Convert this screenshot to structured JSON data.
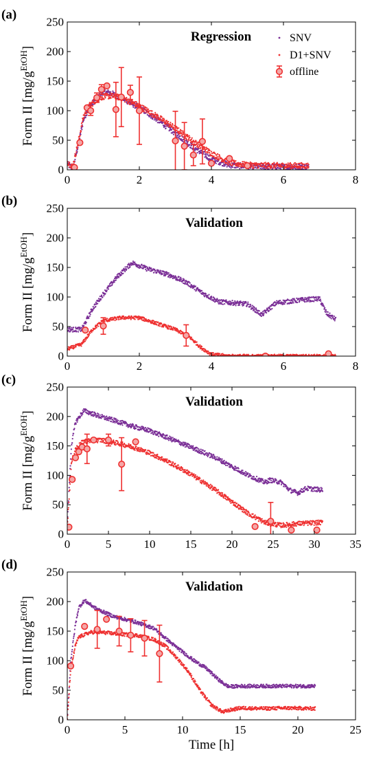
{
  "colors": {
    "snv": "#7a2e96",
    "d1snv": "#ee3030",
    "offline": "#ee3030",
    "offline_fill": "#f4a6a6"
  },
  "legend": {
    "snv": "SNV",
    "d1snv": "D1+SNV",
    "offline": "offline"
  },
  "chart_data": [
    {
      "type": "scatter",
      "panel": "(a)",
      "title": "Regression",
      "ylabel": "Form II [mg/g",
      "ylabel_sup": "EtOH",
      "ylabel_close": "]",
      "xlabel": "",
      "xlim": [
        0,
        8
      ],
      "ylim": [
        0,
        250
      ],
      "xticks": [
        0,
        2,
        4,
        6,
        8
      ],
      "yticks": [
        0,
        50,
        100,
        150,
        200,
        250
      ],
      "grid": false,
      "legend_position": "top-right",
      "series": [
        {
          "name": "SNV",
          "kind": "dots",
          "curve": [
            [
              0,
              10
            ],
            [
              0.15,
              2
            ],
            [
              0.3,
              40
            ],
            [
              0.45,
              85
            ],
            [
              0.6,
              105
            ],
            [
              0.8,
              120
            ],
            [
              1.0,
              132
            ],
            [
              1.2,
              130
            ],
            [
              1.5,
              122
            ],
            [
              2.0,
              105
            ],
            [
              2.5,
              85
            ],
            [
              3.0,
              62
            ],
            [
              3.5,
              38
            ],
            [
              4.0,
              18
            ],
            [
              4.5,
              8
            ],
            [
              5.0,
              6
            ],
            [
              6.0,
              5
            ],
            [
              6.7,
              5
            ]
          ],
          "noise": 5
        },
        {
          "name": "D1+SNV",
          "kind": "dots",
          "curve": [
            [
              0,
              14
            ],
            [
              0.15,
              5
            ],
            [
              0.3,
              45
            ],
            [
              0.45,
              90
            ],
            [
              0.6,
              108
            ],
            [
              0.8,
              118
            ],
            [
              1.0,
              124
            ],
            [
              1.2,
              125
            ],
            [
              1.5,
              122
            ],
            [
              2.0,
              108
            ],
            [
              2.5,
              90
            ],
            [
              3.0,
              70
            ],
            [
              3.5,
              48
            ],
            [
              4.0,
              28
            ],
            [
              4.5,
              12
            ],
            [
              5.0,
              8
            ],
            [
              6.0,
              7
            ],
            [
              6.7,
              7
            ]
          ],
          "noise": 5
        },
        {
          "name": "offline",
          "kind": "errorbar",
          "points": [
            {
              "x": 0.2,
              "y": 4,
              "err": 0
            },
            {
              "x": 0.35,
              "y": 46,
              "err": 0
            },
            {
              "x": 0.55,
              "y": 105,
              "err": 0
            },
            {
              "x": 0.65,
              "y": 100,
              "err": 8
            },
            {
              "x": 0.82,
              "y": 122,
              "err": 8
            },
            {
              "x": 0.95,
              "y": 136,
              "err": 8
            },
            {
              "x": 1.1,
              "y": 142,
              "err": 0
            },
            {
              "x": 1.35,
              "y": 102,
              "err": 46
            },
            {
              "x": 1.5,
              "y": 123,
              "err": 50
            },
            {
              "x": 1.75,
              "y": 131,
              "err": 12
            },
            {
              "x": 2.0,
              "y": 100,
              "err": 57
            },
            {
              "x": 3.0,
              "y": 49,
              "err": 50
            },
            {
              "x": 3.25,
              "y": 40,
              "err": 40
            },
            {
              "x": 3.5,
              "y": 25,
              "err": 18
            },
            {
              "x": 3.75,
              "y": 48,
              "err": 38
            },
            {
              "x": 4.0,
              "y": 11,
              "err": 0
            },
            {
              "x": 4.5,
              "y": 19,
              "err": 0
            },
            {
              "x": 5.0,
              "y": 7,
              "err": 0
            }
          ]
        }
      ]
    },
    {
      "type": "scatter",
      "panel": "(b)",
      "title": "Validation",
      "ylabel": "Form II [mg/g",
      "ylabel_sup": "EtOH",
      "ylabel_close": "]",
      "xlabel": "",
      "xlim": [
        0,
        8
      ],
      "ylim": [
        0,
        250
      ],
      "xticks": [
        0,
        2,
        4,
        6,
        8
      ],
      "yticks": [
        0,
        50,
        100,
        150,
        200,
        250
      ],
      "grid": false,
      "series": [
        {
          "name": "SNV",
          "kind": "dots",
          "curve": [
            [
              0,
              45
            ],
            [
              0.4,
              45
            ],
            [
              0.7,
              80
            ],
            [
              1.0,
              105
            ],
            [
              1.4,
              135
            ],
            [
              1.8,
              158
            ],
            [
              2.2,
              148
            ],
            [
              2.8,
              138
            ],
            [
              3.3,
              125
            ],
            [
              3.8,
              105
            ],
            [
              4.2,
              92
            ],
            [
              5.0,
              88
            ],
            [
              5.4,
              70
            ],
            [
              5.8,
              90
            ],
            [
              6.5,
              95
            ],
            [
              7.0,
              97
            ],
            [
              7.2,
              72
            ],
            [
              7.45,
              62
            ]
          ],
          "noise": 4
        },
        {
          "name": "D1+SNV",
          "kind": "dots",
          "curve": [
            [
              0,
              12
            ],
            [
              0.4,
              20
            ],
            [
              0.7,
              45
            ],
            [
              1.0,
              60
            ],
            [
              1.5,
              65
            ],
            [
              2.0,
              65
            ],
            [
              2.5,
              55
            ],
            [
              3.0,
              45
            ],
            [
              3.4,
              32
            ],
            [
              3.7,
              15
            ],
            [
              4.0,
              3
            ],
            [
              4.5,
              0
            ],
            [
              7.45,
              0
            ]
          ],
          "noise": 3
        },
        {
          "name": "offline",
          "kind": "errorbar",
          "points": [
            {
              "x": 0.5,
              "y": 44,
              "err": 0
            },
            {
              "x": 1.0,
              "y": 51,
              "err": 14
            },
            {
              "x": 3.3,
              "y": 35,
              "err": 18
            },
            {
              "x": 5.5,
              "y": 0,
              "err": 0
            },
            {
              "x": 7.25,
              "y": 4,
              "err": 0
            }
          ]
        }
      ]
    },
    {
      "type": "scatter",
      "panel": "(c)",
      "title": "Validation",
      "ylabel": "Form II [mg/g",
      "ylabel_sup": "EtOH",
      "ylabel_close": "]",
      "xlabel": "",
      "xlim": [
        0,
        35
      ],
      "ylim": [
        0,
        250
      ],
      "xticks": [
        0,
        5,
        10,
        15,
        20,
        25,
        30,
        35
      ],
      "yticks": [
        0,
        50,
        100,
        150,
        200,
        250
      ],
      "grid": false,
      "series": [
        {
          "name": "SNV",
          "kind": "dots",
          "curve": [
            [
              0,
              20
            ],
            [
              0.5,
              150
            ],
            [
              1.0,
              190
            ],
            [
              2.0,
              210
            ],
            [
              4.0,
              200
            ],
            [
              6.0,
              192
            ],
            [
              8.0,
              183
            ],
            [
              10.0,
              176
            ],
            [
              12.0,
              165
            ],
            [
              15.0,
              148
            ],
            [
              18.0,
              130
            ],
            [
              20.0,
              115
            ],
            [
              22.0,
              100
            ],
            [
              24.0,
              88
            ],
            [
              24.6,
              92
            ],
            [
              26.0,
              88
            ],
            [
              27.0,
              75
            ],
            [
              28.0,
              70
            ],
            [
              29.0,
              78
            ],
            [
              31.0,
              75
            ]
          ],
          "noise": 4
        },
        {
          "name": "D1+SNV",
          "kind": "dots",
          "curve": [
            [
              0,
              15
            ],
            [
              0.5,
              120
            ],
            [
              1.0,
              145
            ],
            [
              2.0,
              158
            ],
            [
              4.0,
              160
            ],
            [
              6.0,
              155
            ],
            [
              8.0,
              148
            ],
            [
              10.0,
              138
            ],
            [
              12.0,
              125
            ],
            [
              15.0,
              102
            ],
            [
              18.0,
              75
            ],
            [
              20.0,
              55
            ],
            [
              22.0,
              35
            ],
            [
              24.0,
              20
            ],
            [
              24.6,
              18
            ],
            [
              26.0,
              15
            ],
            [
              28.0,
              18
            ],
            [
              31.0,
              20
            ]
          ],
          "noise": 4
        },
        {
          "name": "offline",
          "kind": "errorbar",
          "points": [
            {
              "x": 0.2,
              "y": 12,
              "err": 0
            },
            {
              "x": 0.6,
              "y": 93,
              "err": 0
            },
            {
              "x": 1.0,
              "y": 130,
              "err": 0
            },
            {
              "x": 1.4,
              "y": 140,
              "err": 0
            },
            {
              "x": 1.8,
              "y": 148,
              "err": 0
            },
            {
              "x": 2.4,
              "y": 145,
              "err": 25
            },
            {
              "x": 3.2,
              "y": 160,
              "err": 0
            },
            {
              "x": 5.0,
              "y": 160,
              "err": 10
            },
            {
              "x": 6.6,
              "y": 119,
              "err": 45
            },
            {
              "x": 8.3,
              "y": 157,
              "err": 0
            },
            {
              "x": 22.8,
              "y": 13,
              "err": 0
            },
            {
              "x": 24.7,
              "y": 22,
              "err": 32
            },
            {
              "x": 27.2,
              "y": 7,
              "err": 0
            },
            {
              "x": 30.3,
              "y": 7,
              "err": 0
            }
          ]
        }
      ]
    },
    {
      "type": "scatter",
      "panel": "(d)",
      "title": "Validation",
      "ylabel": "Form II [mg/g",
      "ylabel_sup": "EtOH",
      "ylabel_close": "]",
      "xlabel": "Time [h]",
      "xlim": [
        0,
        25
      ],
      "ylim": [
        0,
        250
      ],
      "xticks": [
        0,
        5,
        10,
        15,
        20,
        25
      ],
      "yticks": [
        0,
        50,
        100,
        150,
        200,
        250
      ],
      "grid": false,
      "series": [
        {
          "name": "SNV",
          "kind": "dots",
          "curve": [
            [
              0,
              0
            ],
            [
              0.3,
              100
            ],
            [
              0.7,
              160
            ],
            [
              1.0,
              190
            ],
            [
              1.5,
              202
            ],
            [
              2.5,
              188
            ],
            [
              4.0,
              175
            ],
            [
              6.0,
              165
            ],
            [
              7.5,
              155
            ],
            [
              9.0,
              130
            ],
            [
              10.0,
              115
            ],
            [
              11.0,
              100
            ],
            [
              12.0,
              88
            ],
            [
              13.0,
              70
            ],
            [
              13.5,
              62
            ],
            [
              14.0,
              56
            ],
            [
              15.0,
              57
            ],
            [
              17.0,
              57
            ],
            [
              19.0,
              57
            ],
            [
              21.5,
              57
            ]
          ],
          "noise": 3
        },
        {
          "name": "D1+SNV",
          "kind": "dots",
          "curve": [
            [
              0,
              0
            ],
            [
              0.3,
              85
            ],
            [
              0.7,
              125
            ],
            [
              1.0,
              140
            ],
            [
              2.0,
              148
            ],
            [
              3.0,
              148
            ],
            [
              4.5,
              145
            ],
            [
              6.0,
              143
            ],
            [
              7.5,
              136
            ],
            [
              8.5,
              125
            ],
            [
              9.5,
              105
            ],
            [
              10.5,
              82
            ],
            [
              11.5,
              50
            ],
            [
              12.5,
              25
            ],
            [
              13.5,
              13
            ],
            [
              14.0,
              16
            ],
            [
              15.0,
              20
            ],
            [
              17.0,
              19
            ],
            [
              19.0,
              20
            ],
            [
              21.5,
              19
            ]
          ],
          "noise": 3
        },
        {
          "name": "offline",
          "kind": "errorbar",
          "points": [
            {
              "x": 0.3,
              "y": 91,
              "err": 0
            },
            {
              "x": 1.5,
              "y": 158,
              "err": 0
            },
            {
              "x": 2.6,
              "y": 153,
              "err": 32
            },
            {
              "x": 3.4,
              "y": 170,
              "err": 0
            },
            {
              "x": 4.5,
              "y": 150,
              "err": 25
            },
            {
              "x": 5.5,
              "y": 143,
              "err": 28
            },
            {
              "x": 6.7,
              "y": 138,
              "err": 30
            },
            {
              "x": 8.0,
              "y": 112,
              "err": 48
            }
          ]
        }
      ]
    }
  ]
}
